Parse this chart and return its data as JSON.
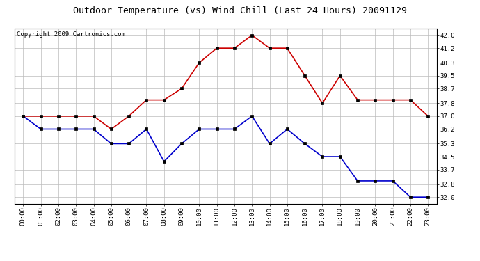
{
  "title": "Outdoor Temperature (vs) Wind Chill (Last 24 Hours) 20091129",
  "copyright": "Copyright 2009 Cartronics.com",
  "x_labels": [
    "00:00",
    "01:00",
    "02:00",
    "03:00",
    "04:00",
    "05:00",
    "06:00",
    "07:00",
    "08:00",
    "09:00",
    "10:00",
    "11:00",
    "12:00",
    "13:00",
    "14:00",
    "15:00",
    "16:00",
    "17:00",
    "18:00",
    "19:00",
    "20:00",
    "21:00",
    "22:00",
    "23:00"
  ],
  "red_data": [
    37.0,
    37.0,
    37.0,
    37.0,
    37.0,
    36.2,
    37.0,
    38.0,
    38.0,
    38.7,
    40.3,
    41.2,
    41.2,
    42.0,
    41.2,
    41.2,
    39.5,
    37.8,
    39.5,
    38.0,
    38.0,
    38.0,
    38.0,
    37.0
  ],
  "blue_data": [
    37.0,
    36.2,
    36.2,
    36.2,
    36.2,
    35.3,
    35.3,
    36.2,
    34.2,
    35.3,
    36.2,
    36.2,
    36.2,
    37.0,
    35.3,
    36.2,
    35.3,
    34.5,
    34.5,
    33.0,
    33.0,
    33.0,
    32.0,
    32.0
  ],
  "red_color": "#cc0000",
  "blue_color": "#0000cc",
  "bg_color": "#ffffff",
  "plot_bg_color": "#ffffff",
  "grid_color": "#bbbbbb",
  "ylim_min": 31.6,
  "ylim_max": 42.4,
  "yticks": [
    32.0,
    32.8,
    33.7,
    34.5,
    35.3,
    36.2,
    37.0,
    37.8,
    38.7,
    39.5,
    40.3,
    41.2,
    42.0
  ],
  "title_fontsize": 9.5,
  "copyright_fontsize": 6.5,
  "tick_fontsize": 6.5,
  "marker": "s",
  "marker_size": 2.5,
  "linewidth": 1.2
}
